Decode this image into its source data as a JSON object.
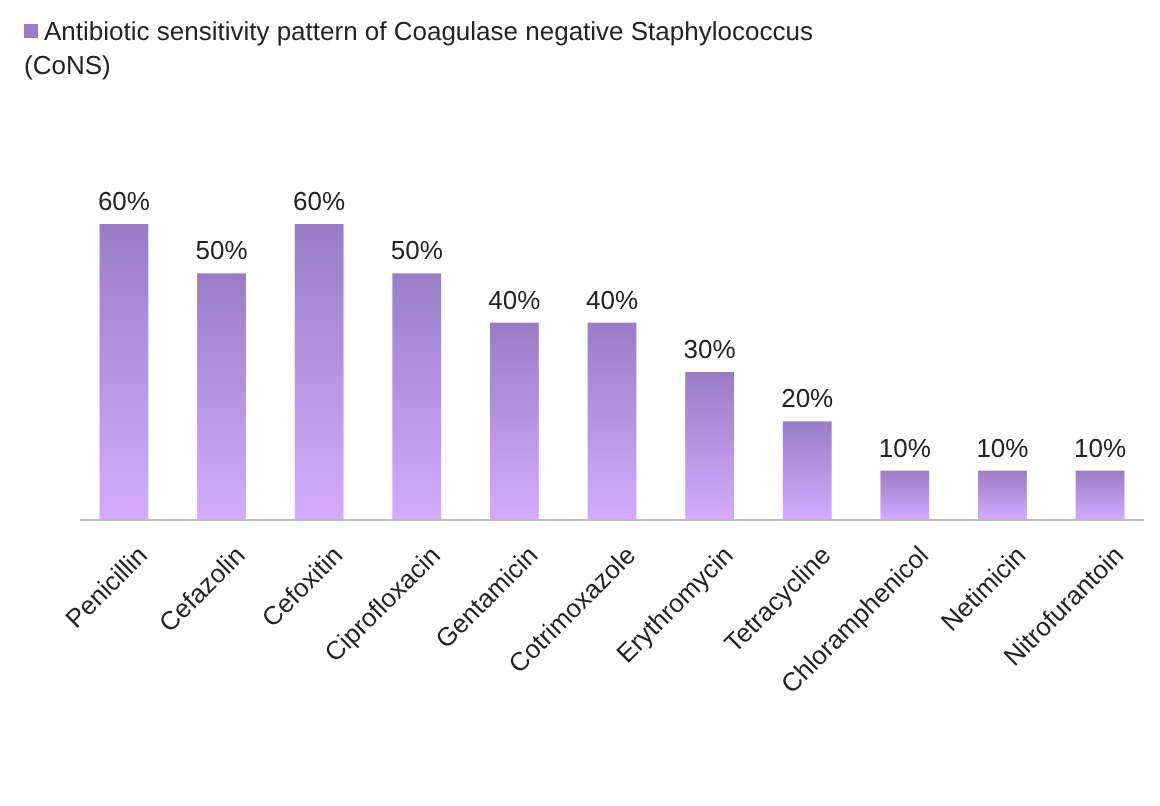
{
  "chart_data": {
    "type": "bar",
    "categories": [
      "Penicillin",
      "Cefazolin",
      "Cefoxitin",
      "Ciprofloxacin",
      "Gentamicin",
      "Cotrimoxazole",
      "Erythromycin",
      "Tetracycline",
      "Chloramphenicol",
      "Netimicin",
      "Nitrofurantoin"
    ],
    "series": [
      {
        "name": "Antibiotic sensitivity pattern of Coagulase negative Staphylococcus (CoNS)",
        "color": "#9a7cc6",
        "values": [
          60,
          50,
          60,
          50,
          40,
          40,
          30,
          20,
          10,
          10,
          10
        ],
        "value_labels": [
          "60%",
          "50%",
          "60%",
          "50%",
          "40%",
          "40%",
          "30%",
          "20%",
          "10%",
          "10%",
          "10%"
        ]
      }
    ],
    "legend": "top left"
  }
}
